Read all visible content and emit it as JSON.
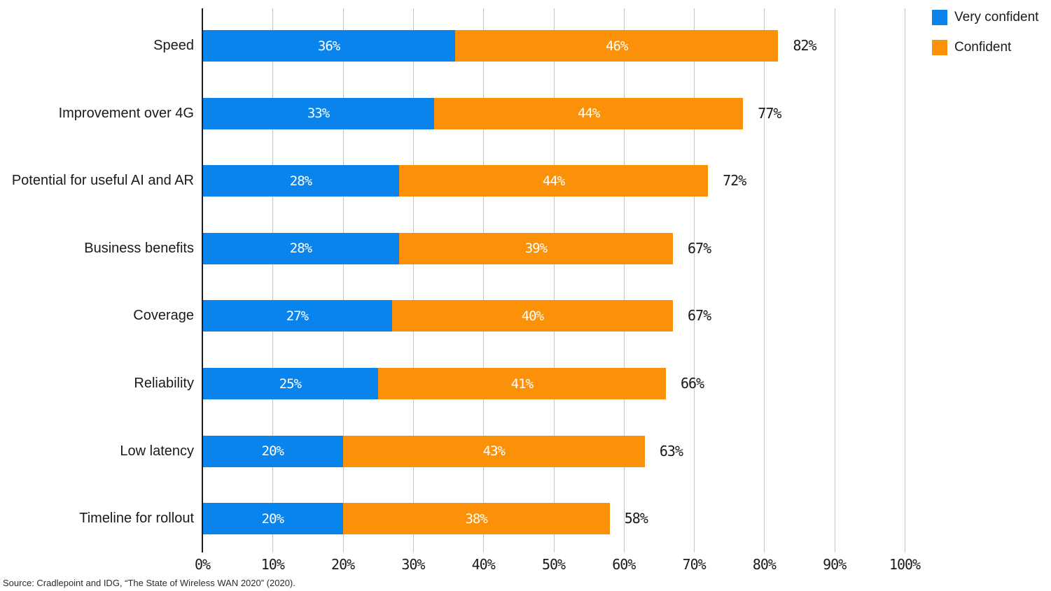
{
  "source": "Source: Cradlepoint and IDG, “The State of Wireless WAN 2020” (2020).",
  "colors": {
    "very_confident": "#0984ec",
    "confident": "#fb9109",
    "gridline": "#c6c6c6",
    "axis": "#1a1a1a"
  },
  "chart_data": {
    "type": "bar",
    "orientation": "horizontal",
    "stacked": true,
    "title": "",
    "xlabel": "",
    "ylabel": "",
    "xlim": [
      0,
      100
    ],
    "grid": true,
    "legend_position": "top-right",
    "categories": [
      "Speed",
      "Improvement over 4G",
      "Potential for useful AI and AR",
      "Business benefits",
      "Coverage",
      "Reliability",
      "Low latency",
      "Timeline for rollout"
    ],
    "series": [
      {
        "name": "Very confident",
        "color": "#0984ec",
        "values": [
          36,
          33,
          28,
          28,
          27,
          25,
          20,
          20
        ],
        "labels": [
          "36%",
          "33%",
          "28%",
          "28%",
          "27%",
          "25%",
          "20%",
          "20%"
        ]
      },
      {
        "name": "Confident",
        "color": "#fb9109",
        "values": [
          46,
          44,
          44,
          39,
          40,
          41,
          43,
          38
        ],
        "labels": [
          "46%",
          "44%",
          "44%",
          "39%",
          "40%",
          "41%",
          "43%",
          "38%"
        ]
      }
    ],
    "totals": [
      82,
      77,
      72,
      67,
      67,
      66,
      63,
      58
    ],
    "total_labels": [
      "82%",
      "77%",
      "72%",
      "67%",
      "67%",
      "66%",
      "63%",
      "58%"
    ],
    "x_ticks": [
      "0%",
      "10%",
      "20%",
      "30%",
      "40%",
      "50%",
      "60%",
      "70%",
      "80%",
      "90%",
      "100%"
    ]
  }
}
